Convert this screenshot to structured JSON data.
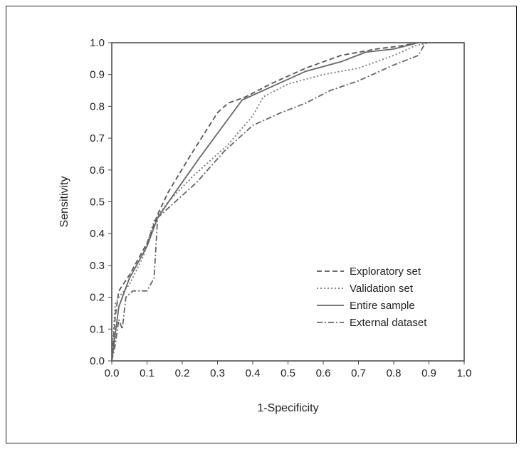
{
  "chart_data": {
    "type": "line",
    "xlabel": "1-Specificity",
    "ylabel": "Sensitivity",
    "xlim": [
      0.0,
      1.0
    ],
    "ylim": [
      0.0,
      1.0
    ],
    "xticks": [
      "0.0",
      "0.1",
      "0.2",
      "0.3",
      "0.4",
      "0.5",
      "0.6",
      "0.7",
      "0.8",
      "0.9",
      "1.0"
    ],
    "yticks": [
      "0.0",
      "0.1",
      "0.2",
      "0.3",
      "0.4",
      "0.5",
      "0.6",
      "0.7",
      "0.8",
      "0.9",
      "1.0"
    ],
    "grid": false,
    "legend_position": "bottom-right",
    "series": [
      {
        "name": "Exploratory set",
        "style": "dashed",
        "color": "#555555",
        "points": [
          [
            0.0,
            0.0
          ],
          [
            0.01,
            0.14
          ],
          [
            0.02,
            0.22
          ],
          [
            0.05,
            0.27
          ],
          [
            0.1,
            0.37
          ],
          [
            0.13,
            0.46
          ],
          [
            0.16,
            0.53
          ],
          [
            0.22,
            0.64
          ],
          [
            0.3,
            0.78
          ],
          [
            0.33,
            0.81
          ],
          [
            0.38,
            0.83
          ],
          [
            0.45,
            0.87
          ],
          [
            0.55,
            0.92
          ],
          [
            0.65,
            0.96
          ],
          [
            0.75,
            0.98
          ],
          [
            0.82,
            0.99
          ],
          [
            0.87,
            1.0
          ],
          [
            1.0,
            1.0
          ]
        ]
      },
      {
        "name": "Validation set",
        "style": "dotted",
        "color": "#777777",
        "points": [
          [
            0.0,
            0.0
          ],
          [
            0.01,
            0.18
          ],
          [
            0.02,
            0.2
          ],
          [
            0.05,
            0.24
          ],
          [
            0.09,
            0.33
          ],
          [
            0.12,
            0.44
          ],
          [
            0.16,
            0.5
          ],
          [
            0.23,
            0.58
          ],
          [
            0.33,
            0.68
          ],
          [
            0.4,
            0.77
          ],
          [
            0.43,
            0.83
          ],
          [
            0.5,
            0.87
          ],
          [
            0.6,
            0.9
          ],
          [
            0.7,
            0.92
          ],
          [
            0.8,
            0.96
          ],
          [
            0.86,
            0.99
          ],
          [
            0.9,
            1.0
          ],
          [
            1.0,
            1.0
          ]
        ]
      },
      {
        "name": "Entire sample",
        "style": "solid",
        "color": "#666666",
        "points": [
          [
            0.0,
            0.0
          ],
          [
            0.02,
            0.17
          ],
          [
            0.05,
            0.26
          ],
          [
            0.1,
            0.36
          ],
          [
            0.13,
            0.45
          ],
          [
            0.18,
            0.53
          ],
          [
            0.25,
            0.64
          ],
          [
            0.37,
            0.82
          ],
          [
            0.45,
            0.86
          ],
          [
            0.55,
            0.91
          ],
          [
            0.65,
            0.94
          ],
          [
            0.72,
            0.97
          ],
          [
            0.8,
            0.98
          ],
          [
            0.87,
            1.0
          ],
          [
            1.0,
            1.0
          ]
        ]
      },
      {
        "name": "External dataset",
        "style": "dashdot",
        "color": "#666666",
        "points": [
          [
            0.0,
            0.0
          ],
          [
            0.01,
            0.05
          ],
          [
            0.02,
            0.13
          ],
          [
            0.03,
            0.1
          ],
          [
            0.04,
            0.2
          ],
          [
            0.06,
            0.22
          ],
          [
            0.1,
            0.22
          ],
          [
            0.12,
            0.26
          ],
          [
            0.13,
            0.45
          ],
          [
            0.18,
            0.5
          ],
          [
            0.24,
            0.56
          ],
          [
            0.32,
            0.66
          ],
          [
            0.4,
            0.74
          ],
          [
            0.48,
            0.78
          ],
          [
            0.55,
            0.81
          ],
          [
            0.62,
            0.85
          ],
          [
            0.7,
            0.88
          ],
          [
            0.8,
            0.93
          ],
          [
            0.87,
            0.96
          ],
          [
            0.89,
            1.0
          ],
          [
            1.0,
            1.0
          ]
        ]
      }
    ]
  }
}
